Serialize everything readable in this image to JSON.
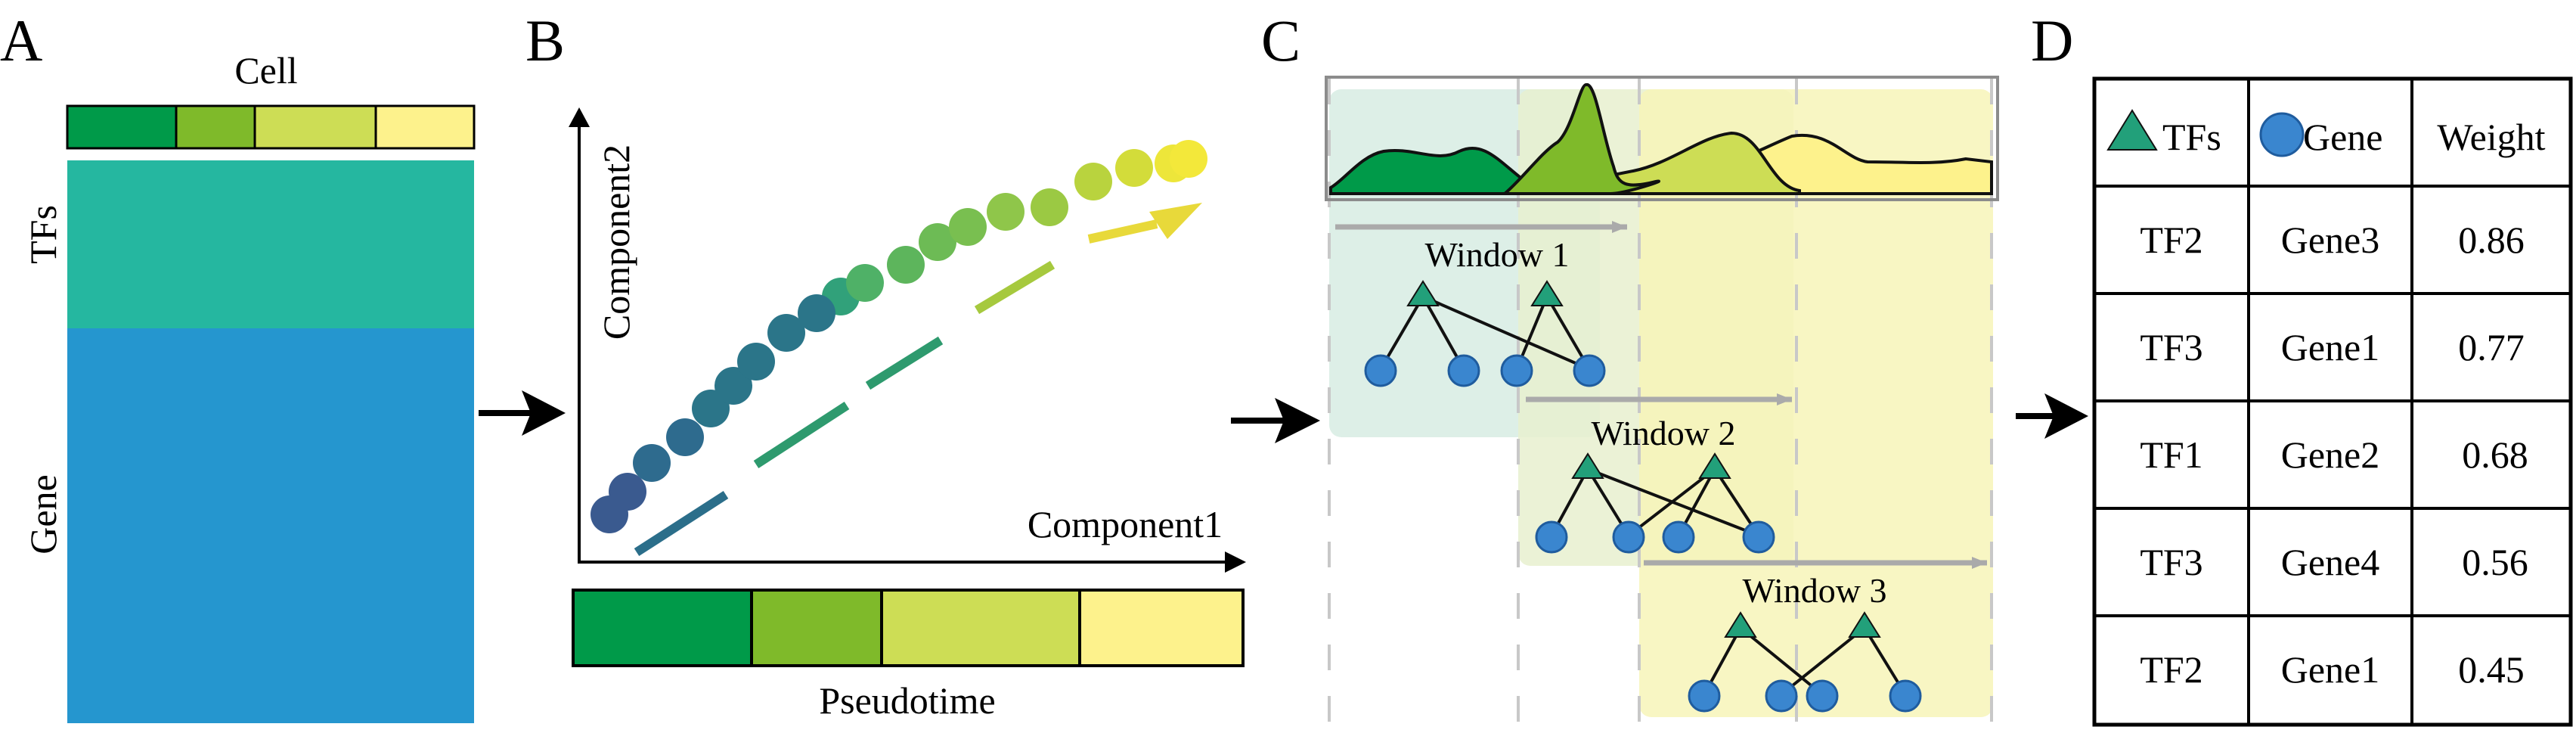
{
  "panels": {
    "a": {
      "letter": "A",
      "cell_label": "Cell",
      "row_labels": [
        "TFs",
        "Gene"
      ],
      "cell_colors": [
        "#009a49",
        "#7fba2a",
        "#cddd55",
        "#fdf28c"
      ],
      "block_colors": {
        "tfs": "#25b7a0",
        "gene": "#2596cf"
      }
    },
    "b": {
      "letter": "B",
      "xlabel": "Component1",
      "ylabel": "Component2",
      "bar_label": "Pseudotime",
      "bar_colors": [
        "#009a49",
        "#7fba2a",
        "#cddd55",
        "#fdf28c"
      ],
      "dot_colors": [
        "#3e5f8e",
        "#2f6f8f",
        "#277c8b",
        "#2a9b7e",
        "#5eb35b",
        "#9bc943",
        "#d6df3e",
        "#f3e83a"
      ],
      "arrow_colors": [
        "#2b6e8a",
        "#2e9a6e",
        "#a6c93e",
        "#e8d93a"
      ]
    },
    "c": {
      "letter": "C",
      "windows": [
        "Window 1",
        "Window 2",
        "Window 3"
      ],
      "density_colors": [
        "#009a49",
        "#7fba2a",
        "#cddd55",
        "#fdf28c"
      ],
      "window_bg": [
        "#d7ece3",
        "#e7f0cf",
        "#f7f4b8"
      ]
    },
    "d": {
      "letter": "D",
      "headers": {
        "tfs": "TFs",
        "gene": "Gene",
        "weight": "Weight"
      },
      "rows": [
        {
          "tf": "TF2",
          "gene": "Gene3",
          "weight": "0.86"
        },
        {
          "tf": "TF3",
          "gene": "Gene1",
          "weight": "0.77"
        },
        {
          "tf": "TF1",
          "gene": "Gene2",
          "weight": "0.68"
        },
        {
          "tf": "TF3",
          "gene": "Gene4",
          "weight": "0.56"
        },
        {
          "tf": "TF2",
          "gene": "Gene1",
          "weight": "0.45"
        }
      ]
    }
  },
  "legend_colors": {
    "tf": "#22a07a",
    "gene": "#3a86cf"
  }
}
